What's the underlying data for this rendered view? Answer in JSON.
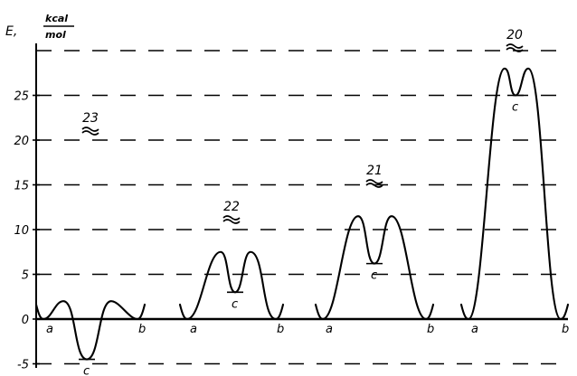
{
  "chart_data": {
    "type": "line",
    "title": "",
    "ylabel": "E,",
    "ylabel_unit_num": "kcal",
    "ylabel_unit_den": "mol",
    "ylim": [
      -5,
      30
    ],
    "yticks": [
      -5,
      0,
      5,
      10,
      15,
      20,
      25
    ],
    "grid": "dashed horizontal",
    "series": [
      {
        "name": "23",
        "points": [
          {
            "label": "a",
            "value": 0
          },
          {
            "label": "",
            "value": 2
          },
          {
            "label": "c",
            "value": -4.5
          },
          {
            "label": "",
            "value": 2
          },
          {
            "label": "b",
            "value": 0
          }
        ]
      },
      {
        "name": "22",
        "points": [
          {
            "label": "a",
            "value": 0
          },
          {
            "label": "",
            "value": 7.5
          },
          {
            "label": "c",
            "value": 3
          },
          {
            "label": "",
            "value": 7.5
          },
          {
            "label": "b",
            "value": 0
          }
        ]
      },
      {
        "name": "21",
        "points": [
          {
            "label": "a",
            "value": 0
          },
          {
            "label": "",
            "value": 11.5
          },
          {
            "label": "c",
            "value": 6.2
          },
          {
            "label": "",
            "value": 11.5
          },
          {
            "label": "b",
            "value": 0
          }
        ]
      },
      {
        "name": "20",
        "points": [
          {
            "label": "a",
            "value": 0
          },
          {
            "label": "",
            "value": 28
          },
          {
            "label": "c",
            "value": 25
          },
          {
            "label": "",
            "value": 28
          },
          {
            "label": "b",
            "value": 0
          }
        ]
      }
    ]
  }
}
